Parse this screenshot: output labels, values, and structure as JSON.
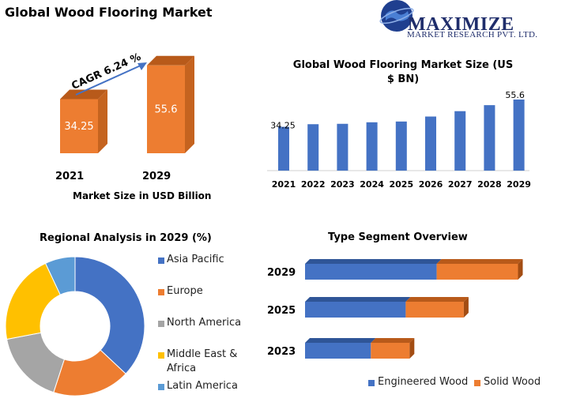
{
  "page_title": "Global Wood Flooring Market",
  "logo": {
    "name": "MAXIMIZE",
    "subtitle": "MARKET RESEARCH PVT. LTD."
  },
  "colors": {
    "orange": "#ed7d31",
    "orange_dark": "#b85a1a",
    "blue": "#4472c4",
    "gray": "#a5a5a5",
    "yellow": "#ffc000",
    "light_blue": "#5b9bd5"
  },
  "chart_data": [
    {
      "type": "bar",
      "categories": [
        "2021",
        "2029"
      ],
      "values": [
        34.25,
        55.6
      ],
      "data_labels": [
        "34.25",
        "55.6"
      ],
      "annotation": "CAGR 6.24 %",
      "xlabel": "Market Size in USD Billion"
    },
    {
      "type": "bar",
      "title": "Global Wood Flooring Market Size (US $ BN)",
      "categories": [
        "2021",
        "2022",
        "2023",
        "2024",
        "2025",
        "2026",
        "2027",
        "2028",
        "2029"
      ],
      "values": [
        34.25,
        36.3,
        36.6,
        37.8,
        38.4,
        42.3,
        46.5,
        51.2,
        55.6
      ],
      "data_labels": [
        "34.25",
        "",
        "",
        "",
        "",
        "",
        "",
        "",
        "55.6"
      ]
    },
    {
      "type": "pie",
      "title": "Regional Analysis in 2029 (%)",
      "categories": [
        "Asia Pacific",
        "Europe",
        "North America",
        "Middle East & Africa",
        "Latin America"
      ],
      "values": [
        37,
        18,
        17,
        21,
        7
      ],
      "colors": [
        "#4472c4",
        "#ed7d31",
        "#a5a5a5",
        "#ffc000",
        "#5b9bd5"
      ]
    },
    {
      "type": "bar",
      "title": "Type Segment Overview",
      "orientation": "horizontal",
      "stacked": true,
      "categories": [
        "2029",
        "2025",
        "2023"
      ],
      "series": [
        {
          "name": "Engineered Wood",
          "values": [
            34,
            26,
            17
          ]
        },
        {
          "name": "Solid Wood",
          "values": [
            21,
            15,
            10
          ]
        }
      ],
      "legend_placement": "bottom"
    }
  ]
}
